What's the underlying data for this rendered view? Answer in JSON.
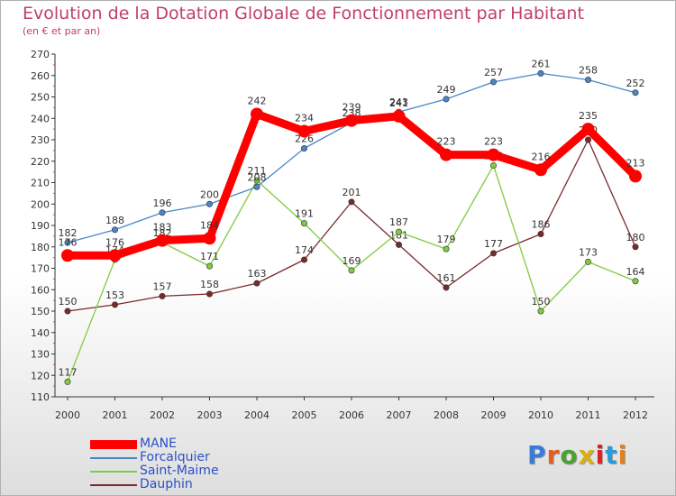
{
  "header": {
    "title": "Evolution de la Dotation Globale de Fonctionnement par Habitant",
    "subtitle": "(en € et par an)"
  },
  "colors": {
    "title": "#c0406a",
    "legend_text": "#2a50c8",
    "axis": "#333333",
    "tick_marks": "#d04060"
  },
  "logo": {
    "text": "Proxiti"
  },
  "chart_data": {
    "type": "line",
    "x": [
      "2000",
      "2001",
      "2002",
      "2003",
      "2004",
      "2005",
      "2006",
      "2007",
      "2008",
      "2009",
      "2010",
      "2011",
      "2012"
    ],
    "ylim": [
      110,
      270
    ],
    "yticks": [
      110,
      120,
      130,
      140,
      150,
      160,
      170,
      180,
      190,
      200,
      210,
      220,
      230,
      240,
      250,
      260,
      270
    ],
    "grid": false,
    "legend_position": "bottom-left",
    "series": [
      {
        "name": "MANE",
        "color": "#ff0000",
        "values": [
          176,
          176,
          183,
          184,
          242,
          234,
          239,
          241,
          223,
          223,
          216,
          235,
          213
        ]
      },
      {
        "name": "Forcalquier",
        "color": "#4a86c8",
        "values": [
          182,
          188,
          196,
          200,
          208,
          226,
          238,
          243,
          249,
          257,
          261,
          258,
          252
        ]
      },
      {
        "name": "Saint-Maime",
        "color": "#80cc40",
        "values": [
          117,
          174,
          182,
          171,
          211,
          191,
          169,
          187,
          179,
          218,
          150,
          173,
          164
        ]
      },
      {
        "name": "Dauphin",
        "color": "#7a2a2a",
        "values": [
          150,
          153,
          157,
          158,
          163,
          174,
          201,
          181,
          161,
          177,
          186,
          230,
          180
        ]
      }
    ]
  }
}
